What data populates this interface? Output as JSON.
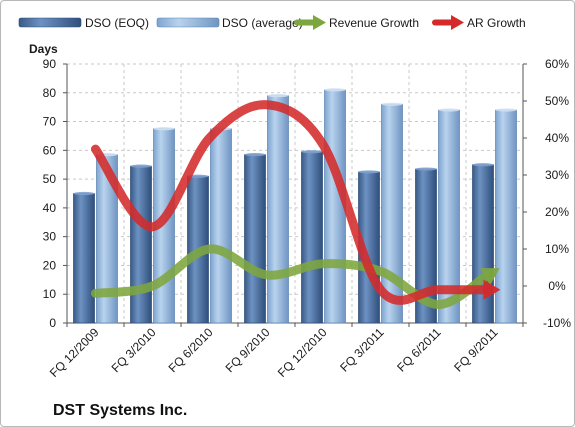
{
  "chart_data": {
    "type": "bar",
    "title": "DST Systems Inc.",
    "ylabel": "Days",
    "categories": [
      "FQ 12/2009",
      "FQ 3/2010",
      "FQ 6/2010",
      "FQ 9/2010",
      "FQ 12/2010",
      "FQ 3/2011",
      "FQ 6/2011",
      "FQ 9/2011"
    ],
    "ylim": [
      0,
      90
    ],
    "yticks": [
      0,
      10,
      20,
      30,
      40,
      50,
      60,
      70,
      80,
      90
    ],
    "y2lim": [
      -10,
      60
    ],
    "y2ticks": [
      -10,
      0,
      10,
      20,
      30,
      40,
      50,
      60
    ],
    "y2tick_labels": [
      "-10%",
      "0%",
      "10%",
      "20%",
      "30%",
      "40%",
      "50%",
      "60%"
    ],
    "grid": true,
    "legend_position": "top",
    "series": [
      {
        "name": "DSO (EOQ)",
        "kind": "bar",
        "axis": "left",
        "color": "#4a6fa0",
        "values": [
          45,
          54.5,
          51,
          58.5,
          59.5,
          52.5,
          53.5,
          55
        ]
      },
      {
        "name": "DSO (average)",
        "kind": "bar",
        "axis": "left",
        "color": "#8fb2d9",
        "values": [
          58.5,
          67.5,
          67.5,
          79,
          81,
          76,
          74,
          74
        ]
      },
      {
        "name": "Revenue Growth",
        "kind": "line-arrow",
        "axis": "right",
        "color": "#7ea63f",
        "values": [
          -2,
          0,
          10,
          3,
          6,
          4,
          -5,
          4
        ]
      },
      {
        "name": "AR Growth",
        "kind": "line-arrow",
        "axis": "right",
        "color": "#d42a2a",
        "values": [
          37,
          16,
          40,
          49,
          38,
          -1,
          -1,
          -1
        ]
      }
    ]
  }
}
